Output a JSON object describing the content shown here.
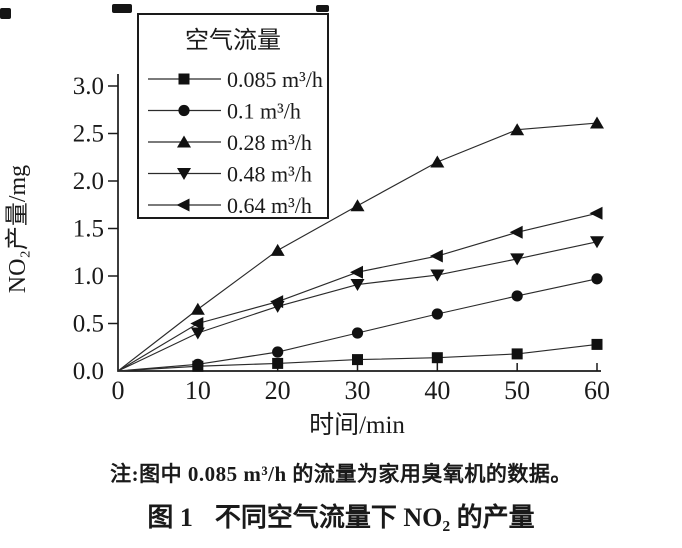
{
  "figure": {
    "note": "注:图中 0.085 m³/h 的流量为家用臭氧机的数据。",
    "caption_label": "图 1",
    "caption_text": "不同空气流量下 NO₂ 的产量"
  },
  "chart_data": {
    "type": "line",
    "title": "",
    "xlabel": "时间/min",
    "ylabel": "NO₂产量/mg",
    "xlim": [
      0,
      60
    ],
    "ylim": [
      0,
      3.0
    ],
    "x_tick_values": [
      0,
      10,
      20,
      30,
      40,
      50,
      60
    ],
    "x_tick_labels": [
      "0",
      "10",
      "20",
      "30",
      "40",
      "50",
      "60"
    ],
    "y_tick_values": [
      0,
      0.5,
      1.0,
      1.5,
      2.0,
      2.5,
      3.0
    ],
    "y_tick_labels": [
      "0.0",
      "0.5",
      "1.0",
      "1.5",
      "2.0",
      "2.5",
      "3.0"
    ],
    "grid": false,
    "legend": {
      "title": "空气流量",
      "position": "top-left"
    },
    "x": [
      0,
      10,
      20,
      30,
      40,
      50,
      60
    ],
    "series": [
      {
        "name": "0.085 m³/h",
        "marker": "square",
        "values": [
          0,
          0.05,
          0.08,
          0.12,
          0.14,
          0.18,
          0.28
        ]
      },
      {
        "name": "0.1 m³/h",
        "marker": "circle",
        "values": [
          0,
          0.07,
          0.2,
          0.4,
          0.6,
          0.79,
          0.97
        ]
      },
      {
        "name": "0.28 m³/h",
        "marker": "triangle-up",
        "values": [
          0,
          0.65,
          1.27,
          1.74,
          2.2,
          2.54,
          2.61
        ]
      },
      {
        "name": "0.48 m³/h",
        "marker": "triangle-down",
        "values": [
          0,
          0.4,
          0.68,
          0.91,
          1.01,
          1.18,
          1.36
        ]
      },
      {
        "name": "0.64 m³/h",
        "marker": "triangle-left",
        "values": [
          0,
          0.5,
          0.73,
          1.04,
          1.21,
          1.46,
          1.66
        ]
      }
    ],
    "colors": {
      "line": "#2b2b2b",
      "marker": "#111111",
      "text": "#1a1a1a"
    }
  }
}
